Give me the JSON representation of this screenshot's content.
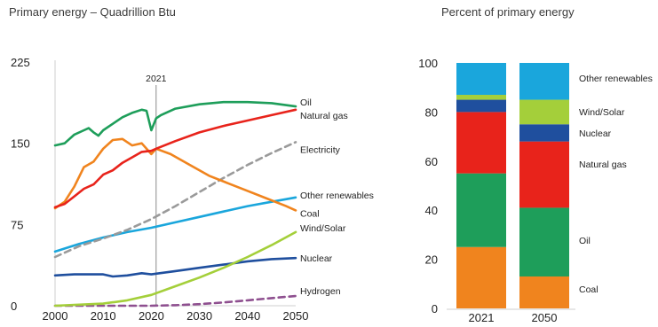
{
  "chart_data": [
    {
      "type": "line",
      "title": "Primary energy – Quadrillion Btu",
      "xlabel": "",
      "ylabel": "",
      "xlim": [
        2000,
        2050
      ],
      "ylim": [
        0,
        225
      ],
      "x_ticks": [
        "2000",
        "2010",
        "2020",
        "2030",
        "2040",
        "2050"
      ],
      "y_ticks": [
        "0",
        "75",
        "150",
        "225"
      ],
      "annotation": "2021",
      "annotation_x": 2021,
      "series": [
        {
          "name": "Oil",
          "color": "#1e9e5a",
          "dash": false,
          "points": [
            [
              2000,
              148
            ],
            [
              2002,
              150
            ],
            [
              2004,
              158
            ],
            [
              2006,
              162
            ],
            [
              2007,
              164
            ],
            [
              2008,
              160
            ],
            [
              2009,
              157
            ],
            [
              2010,
              162
            ],
            [
              2012,
              168
            ],
            [
              2014,
              174
            ],
            [
              2016,
              178
            ],
            [
              2018,
              181
            ],
            [
              2019,
              180
            ],
            [
              2020,
              162
            ],
            [
              2021,
              173
            ],
            [
              2022,
              176
            ],
            [
              2025,
              182
            ],
            [
              2030,
              186
            ],
            [
              2035,
              188
            ],
            [
              2040,
              188
            ],
            [
              2045,
              187
            ],
            [
              2050,
              184
            ]
          ]
        },
        {
          "name": "Natural gas",
          "color": "#e8231b",
          "dash": false,
          "points": [
            [
              2000,
              91
            ],
            [
              2002,
              94
            ],
            [
              2004,
              101
            ],
            [
              2006,
              108
            ],
            [
              2008,
              112
            ],
            [
              2010,
              121
            ],
            [
              2012,
              125
            ],
            [
              2014,
              132
            ],
            [
              2016,
              137
            ],
            [
              2018,
              142
            ],
            [
              2020,
              143
            ],
            [
              2021,
              145
            ],
            [
              2025,
              152
            ],
            [
              2030,
              160
            ],
            [
              2035,
              166
            ],
            [
              2040,
              171
            ],
            [
              2045,
              176
            ],
            [
              2050,
              181
            ]
          ]
        },
        {
          "name": "Electricity",
          "color": "#9a9a9a",
          "dash": true,
          "points": [
            [
              2000,
              45
            ],
            [
              2005,
              55
            ],
            [
              2010,
              62
            ],
            [
              2015,
              70
            ],
            [
              2020,
              80
            ],
            [
              2025,
              92
            ],
            [
              2030,
              105
            ],
            [
              2035,
              118
            ],
            [
              2040,
              130
            ],
            [
              2045,
              141
            ],
            [
              2050,
              151
            ]
          ]
        },
        {
          "name": "Other renewables",
          "color": "#1aa6dc",
          "dash": false,
          "points": [
            [
              2000,
              50
            ],
            [
              2005,
              57
            ],
            [
              2010,
              63
            ],
            [
              2015,
              68
            ],
            [
              2020,
              72
            ],
            [
              2025,
              77
            ],
            [
              2030,
              82
            ],
            [
              2035,
              87
            ],
            [
              2040,
              92
            ],
            [
              2045,
              96
            ],
            [
              2050,
              100
            ]
          ]
        },
        {
          "name": "Coal",
          "color": "#f0841e",
          "dash": false,
          "points": [
            [
              2000,
              90
            ],
            [
              2002,
              96
            ],
            [
              2004,
              110
            ],
            [
              2006,
              128
            ],
            [
              2008,
              133
            ],
            [
              2010,
              145
            ],
            [
              2012,
              153
            ],
            [
              2014,
              154
            ],
            [
              2016,
              148
            ],
            [
              2018,
              150
            ],
            [
              2020,
              140
            ],
            [
              2021,
              145
            ],
            [
              2024,
              140
            ],
            [
              2028,
              130
            ],
            [
              2032,
              120
            ],
            [
              2036,
              113
            ],
            [
              2040,
              106
            ],
            [
              2044,
              99
            ],
            [
              2048,
              92
            ],
            [
              2050,
              88
            ]
          ]
        },
        {
          "name": "Wind/Solar",
          "color": "#a4cf3a",
          "dash": false,
          "points": [
            [
              2000,
              0
            ],
            [
              2005,
              1
            ],
            [
              2010,
              2
            ],
            [
              2015,
              5
            ],
            [
              2020,
              10
            ],
            [
              2025,
              18
            ],
            [
              2030,
              26
            ],
            [
              2035,
              35
            ],
            [
              2040,
              45
            ],
            [
              2045,
              56
            ],
            [
              2050,
              68
            ]
          ]
        },
        {
          "name": "Nuclear",
          "color": "#1f4f9e",
          "dash": false,
          "points": [
            [
              2000,
              28
            ],
            [
              2004,
              29
            ],
            [
              2008,
              29
            ],
            [
              2010,
              29
            ],
            [
              2012,
              27
            ],
            [
              2015,
              28
            ],
            [
              2018,
              30
            ],
            [
              2020,
              29
            ],
            [
              2025,
              32
            ],
            [
              2030,
              35
            ],
            [
              2035,
              38
            ],
            [
              2040,
              41
            ],
            [
              2045,
              43
            ],
            [
              2050,
              44
            ]
          ]
        },
        {
          "name": "Hydrogen",
          "color": "#8e4f8f",
          "dash": true,
          "points": [
            [
              2000,
              0
            ],
            [
              2010,
              0
            ],
            [
              2020,
              0
            ],
            [
              2025,
              0.5
            ],
            [
              2030,
              1.5
            ],
            [
              2035,
              3
            ],
            [
              2040,
              5
            ],
            [
              2045,
              7
            ],
            [
              2050,
              9
            ]
          ]
        }
      ]
    },
    {
      "type": "bar",
      "stacked": true,
      "title": "Percent of primary energy",
      "xlabel": "",
      "ylabel": "",
      "categories": [
        "2021",
        "2050"
      ],
      "ylim": [
        0,
        100
      ],
      "y_ticks": [
        "0",
        "20",
        "40",
        "60",
        "80",
        "100"
      ],
      "series": [
        {
          "name": "Coal",
          "color": "#f0841e",
          "values": [
            25,
            13
          ]
        },
        {
          "name": "Oil",
          "color": "#1e9e5a",
          "values": [
            30,
            28
          ]
        },
        {
          "name": "Natural gas",
          "color": "#e8231b",
          "values": [
            25,
            27
          ]
        },
        {
          "name": "Nuclear",
          "color": "#1f4f9e",
          "values": [
            5,
            7
          ]
        },
        {
          "name": "Wind/Solar",
          "color": "#a4cf3a",
          "values": [
            2,
            10
          ]
        },
        {
          "name": "Other renewables",
          "color": "#1aa6dc",
          "values": [
            13,
            15
          ]
        }
      ],
      "legend_labels": [
        "Other renewables",
        "Wind/Solar",
        "Nuclear",
        "Natural gas",
        "Oil",
        "Coal"
      ]
    }
  ]
}
